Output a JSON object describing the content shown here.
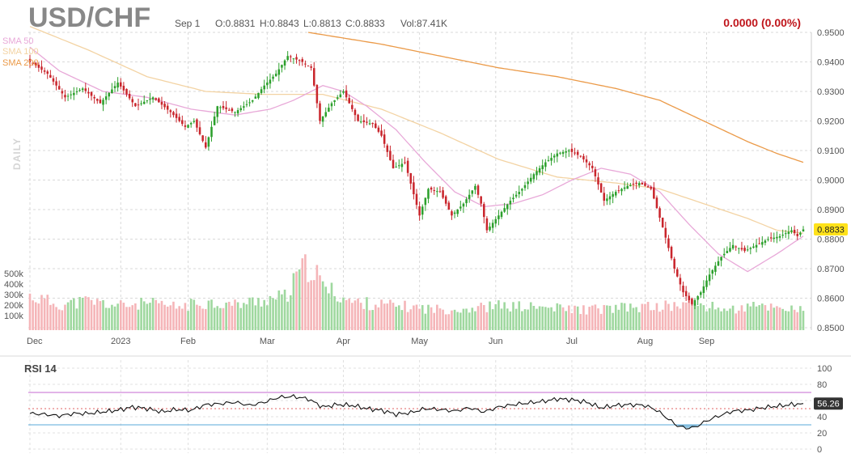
{
  "header": {
    "ticker": "USD/CHF",
    "date": "Sep 1",
    "open": "O:0.8831",
    "high": "H:0.8843",
    "low": "L:0.8813",
    "close": "C:0.8833",
    "volume": "Vol:87.41K",
    "change": "0.0000 (0.00%)"
  },
  "side_label": "DAILY",
  "legend": [
    {
      "label": "SMA 50",
      "color": "#e8a8d8"
    },
    {
      "label": "SMA 100",
      "color": "#f3d3a3"
    },
    {
      "label": "SMA 200",
      "color": "#eb9a48"
    }
  ],
  "price_axis": {
    "ticks": [
      "0.9500",
      "0.9400",
      "0.9300",
      "0.9200",
      "0.9100",
      "0.9000",
      "0.8900",
      "0.8800",
      "0.8700",
      "0.8600",
      "0.8500"
    ],
    "ylim": [
      0.85,
      0.95
    ],
    "last_price": "0.8833"
  },
  "volume_axis": {
    "ticks": [
      "500k",
      "400k",
      "300k",
      "200k",
      "100k"
    ]
  },
  "x_axis": {
    "labels": [
      "Dec",
      "2023",
      "Feb",
      "Mar",
      "Apr",
      "May",
      "Jun",
      "Jul",
      "Aug",
      "Sep"
    ]
  },
  "rsi": {
    "title": "RSI 14",
    "ticks": [
      "100",
      "80",
      "60",
      "40",
      "20",
      "0"
    ],
    "last_value": "56.26",
    "overbought": 70,
    "oversold": 30
  },
  "colors": {
    "up": "#2ca02c",
    "down": "#c9252c",
    "up_volume": "#9fd89f",
    "down_volume": "#f5b5b8",
    "sma50": "#e8a8d8",
    "sma100": "#f3d3a3",
    "sma200": "#eb9a48",
    "rsi_line": "#111111",
    "rsi_upper": "#c46ad0",
    "rsi_lower": "#5aa8d8",
    "rsi_fill": "#6ab0d8",
    "price_badge": "#ffe21a",
    "rsi_badge": "#333333"
  },
  "chart_data": {
    "type": "candlestick",
    "x_start_label": "Dec",
    "x_end_label": "Sep 1",
    "anchors": {
      "close": [
        [
          0,
          0.94
        ],
        [
          6,
          0.936
        ],
        [
          12,
          0.928
        ],
        [
          18,
          0.931
        ],
        [
          24,
          0.926
        ],
        [
          30,
          0.933
        ],
        [
          36,
          0.925
        ],
        [
          42,
          0.928
        ],
        [
          48,
          0.923
        ],
        [
          53,
          0.918
        ],
        [
          56,
          0.92
        ],
        [
          60,
          0.911
        ],
        [
          64,
          0.925
        ],
        [
          70,
          0.923
        ],
        [
          76,
          0.927
        ],
        [
          80,
          0.932
        ],
        [
          84,
          0.936
        ],
        [
          88,
          0.942
        ],
        [
          93,
          0.94
        ],
        [
          96,
          0.938
        ],
        [
          99,
          0.92
        ],
        [
          103,
          0.926
        ],
        [
          107,
          0.93
        ],
        [
          112,
          0.92
        ],
        [
          117,
          0.919
        ],
        [
          120,
          0.915
        ],
        [
          124,
          0.904
        ],
        [
          128,
          0.906
        ],
        [
          133,
          0.888
        ],
        [
          136,
          0.897
        ],
        [
          140,
          0.896
        ],
        [
          144,
          0.888
        ],
        [
          148,
          0.892
        ],
        [
          152,
          0.898
        ],
        [
          154,
          0.892
        ],
        [
          156,
          0.883
        ],
        [
          160,
          0.888
        ],
        [
          164,
          0.893
        ],
        [
          168,
          0.897
        ],
        [
          172,
          0.902
        ],
        [
          176,
          0.906
        ],
        [
          180,
          0.909
        ],
        [
          184,
          0.91
        ],
        [
          188,
          0.908
        ],
        [
          192,
          0.904
        ],
        [
          196,
          0.893
        ],
        [
          200,
          0.896
        ],
        [
          204,
          0.898
        ],
        [
          208,
          0.899
        ],
        [
          212,
          0.897
        ],
        [
          216,
          0.884
        ],
        [
          220,
          0.87
        ],
        [
          223,
          0.862
        ],
        [
          226,
          0.858
        ],
        [
          229,
          0.862
        ],
        [
          232,
          0.868
        ],
        [
          236,
          0.874
        ],
        [
          240,
          0.878
        ],
        [
          244,
          0.876
        ],
        [
          248,
          0.878
        ],
        [
          252,
          0.88
        ],
        [
          256,
          0.881
        ],
        [
          260,
          0.883
        ],
        [
          262,
          0.881
        ],
        [
          264,
          0.8833
        ]
      ],
      "sma50": [
        [
          0,
          0.945
        ],
        [
          10,
          0.937
        ],
        [
          25,
          0.93
        ],
        [
          40,
          0.928
        ],
        [
          55,
          0.924
        ],
        [
          70,
          0.922
        ],
        [
          82,
          0.924
        ],
        [
          90,
          0.927
        ],
        [
          100,
          0.932
        ],
        [
          107,
          0.93
        ],
        [
          115,
          0.925
        ],
        [
          125,
          0.917
        ],
        [
          135,
          0.906
        ],
        [
          145,
          0.896
        ],
        [
          155,
          0.891
        ],
        [
          165,
          0.892
        ],
        [
          175,
          0.895
        ],
        [
          185,
          0.9
        ],
        [
          195,
          0.904
        ],
        [
          205,
          0.902
        ],
        [
          215,
          0.896
        ],
        [
          225,
          0.885
        ],
        [
          235,
          0.875
        ],
        [
          245,
          0.869
        ],
        [
          255,
          0.875
        ],
        [
          264,
          0.881
        ]
      ],
      "sma100": [
        [
          0,
          0.952
        ],
        [
          20,
          0.944
        ],
        [
          40,
          0.935
        ],
        [
          60,
          0.93
        ],
        [
          80,
          0.929
        ],
        [
          100,
          0.929
        ],
        [
          120,
          0.924
        ],
        [
          140,
          0.916
        ],
        [
          160,
          0.907
        ],
        [
          180,
          0.901
        ],
        [
          200,
          0.899
        ],
        [
          215,
          0.897
        ],
        [
          230,
          0.892
        ],
        [
          245,
          0.887
        ],
        [
          255,
          0.883
        ],
        [
          264,
          0.882
        ]
      ],
      "sma200": [
        [
          95,
          0.95
        ],
        [
          120,
          0.946
        ],
        [
          140,
          0.942
        ],
        [
          160,
          0.938
        ],
        [
          180,
          0.935
        ],
        [
          200,
          0.931
        ],
        [
          215,
          0.927
        ],
        [
          230,
          0.92
        ],
        [
          245,
          0.913
        ],
        [
          255,
          0.909
        ],
        [
          264,
          0.906
        ]
      ],
      "volume": [
        [
          0,
          280
        ],
        [
          10,
          210
        ],
        [
          20,
          240
        ],
        [
          30,
          200
        ],
        [
          40,
          220
        ],
        [
          50,
          190
        ],
        [
          60,
          230
        ],
        [
          70,
          210
        ],
        [
          80,
          250
        ],
        [
          88,
          280
        ],
        [
          92,
          480
        ],
        [
          96,
          530
        ],
        [
          100,
          360
        ],
        [
          110,
          230
        ],
        [
          120,
          210
        ],
        [
          130,
          190
        ],
        [
          140,
          170
        ],
        [
          150,
          180
        ],
        [
          160,
          200
        ],
        [
          170,
          190
        ],
        [
          180,
          180
        ],
        [
          190,
          170
        ],
        [
          200,
          180
        ],
        [
          210,
          190
        ],
        [
          220,
          200
        ],
        [
          226,
          230
        ],
        [
          232,
          190
        ],
        [
          240,
          170
        ],
        [
          250,
          200
        ],
        [
          260,
          180
        ],
        [
          264,
          160
        ]
      ],
      "rsi": [
        [
          0,
          44
        ],
        [
          5,
          43
        ],
        [
          10,
          41
        ],
        [
          15,
          44
        ],
        [
          20,
          44
        ],
        [
          30,
          48
        ],
        [
          35,
          52
        ],
        [
          40,
          50
        ],
        [
          45,
          46
        ],
        [
          50,
          49
        ],
        [
          55,
          48
        ],
        [
          60,
          55
        ],
        [
          65,
          56
        ],
        [
          70,
          58
        ],
        [
          75,
          54
        ],
        [
          80,
          58
        ],
        [
          85,
          64
        ],
        [
          90,
          65
        ],
        [
          95,
          62
        ],
        [
          100,
          52
        ],
        [
          105,
          55
        ],
        [
          110,
          54
        ],
        [
          115,
          50
        ],
        [
          120,
          48
        ],
        [
          125,
          43
        ],
        [
          130,
          45
        ],
        [
          135,
          50
        ],
        [
          140,
          49
        ],
        [
          145,
          47
        ],
        [
          150,
          51
        ],
        [
          155,
          46
        ],
        [
          160,
          52
        ],
        [
          165,
          55
        ],
        [
          170,
          57
        ],
        [
          175,
          59
        ],
        [
          180,
          62
        ],
        [
          185,
          61
        ],
        [
          190,
          58
        ],
        [
          195,
          51
        ],
        [
          200,
          54
        ],
        [
          205,
          55
        ],
        [
          210,
          54
        ],
        [
          214,
          48
        ],
        [
          218,
          37
        ],
        [
          221,
          29
        ],
        [
          224,
          26
        ],
        [
          227,
          27
        ],
        [
          230,
          33
        ],
        [
          233,
          38
        ],
        [
          236,
          42
        ],
        [
          240,
          47
        ],
        [
          245,
          48
        ],
        [
          250,
          51
        ],
        [
          255,
          53
        ],
        [
          260,
          55
        ],
        [
          264,
          56.26
        ]
      ]
    }
  }
}
